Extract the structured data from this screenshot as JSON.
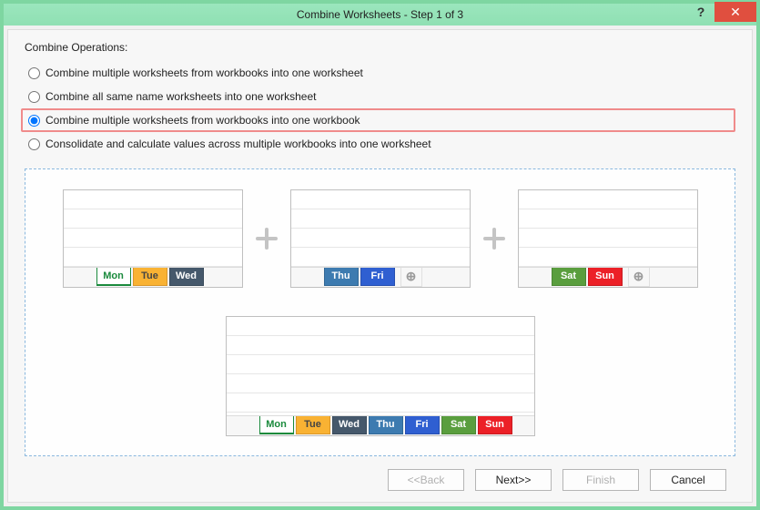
{
  "window": {
    "title": "Combine Worksheets - Step 1 of 3",
    "help": "?",
    "close": "✕"
  },
  "section_label": "Combine Operations:",
  "options": [
    {
      "id": "opt1",
      "label": "Combine multiple worksheets from workbooks into one worksheet",
      "checked": false,
      "highlight": false
    },
    {
      "id": "opt2",
      "label": "Combine all same name worksheets into one worksheet",
      "checked": false,
      "highlight": false
    },
    {
      "id": "opt3",
      "label": "Combine multiple worksheets from workbooks into one workbook",
      "checked": true,
      "highlight": true
    },
    {
      "id": "opt4",
      "label": "Consolidate and calculate values across multiple workbooks into one worksheet",
      "checked": false,
      "highlight": false
    }
  ],
  "tab_styles": {
    "Mon": {
      "bg": "#ffffff",
      "fg": "#1a8a3c",
      "border": "#1a8a3c"
    },
    "Tue": {
      "bg": "#f9b233",
      "fg": "#444444",
      "border": "#d9962a"
    },
    "Wed": {
      "bg": "#45586b",
      "fg": "#ffffff",
      "border": "#394a5a"
    },
    "Thu": {
      "bg": "#3d7bb0",
      "fg": "#ffffff",
      "border": "#326896"
    },
    "Fri": {
      "bg": "#2f5fd1",
      "fg": "#ffffff",
      "border": "#274fb0"
    },
    "Sat": {
      "bg": "#5a9e3e",
      "fg": "#ffffff",
      "border": "#4c8834"
    },
    "Sun": {
      "bg": "#ec2027",
      "fg": "#ffffff",
      "border": "#c71a20"
    }
  },
  "sheets_top": [
    {
      "tabs": [
        "Mon",
        "Tue",
        "Wed"
      ],
      "add": false
    },
    {
      "tabs": [
        "Thu",
        "Fri"
      ],
      "add": true
    },
    {
      "tabs": [
        "Sat",
        "Sun"
      ],
      "add": true
    }
  ],
  "sheet_result": {
    "tabs": [
      "Mon",
      "Tue",
      "Wed",
      "Thu",
      "Fri",
      "Sat",
      "Sun"
    ],
    "add": false
  },
  "buttons": {
    "back": "<<Back",
    "next": "Next>>",
    "finish": "Finish",
    "cancel": "Cancel"
  }
}
